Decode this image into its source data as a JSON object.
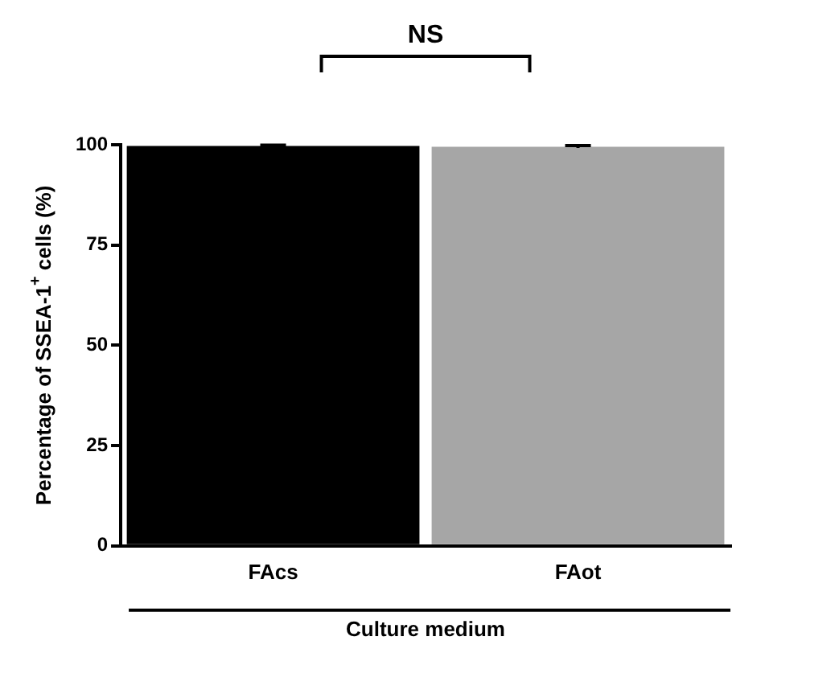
{
  "chart_data": {
    "type": "bar",
    "categories": [
      "FAcs",
      "FAot"
    ],
    "values": [
      99.7,
      99.5
    ],
    "colors": [
      "#000000",
      "#a6a6a6"
    ],
    "errors": [
      0.2,
      0.3
    ],
    "ylim": [
      0,
      100
    ],
    "yticks": [
      0,
      25,
      50,
      75,
      100
    ],
    "grid": false,
    "legend": false,
    "ylabel": "Percentage of SSEA-1$^{+}$ cells (%)",
    "xlabel": "Culture medium",
    "annotations": [
      "NS"
    ]
  }
}
